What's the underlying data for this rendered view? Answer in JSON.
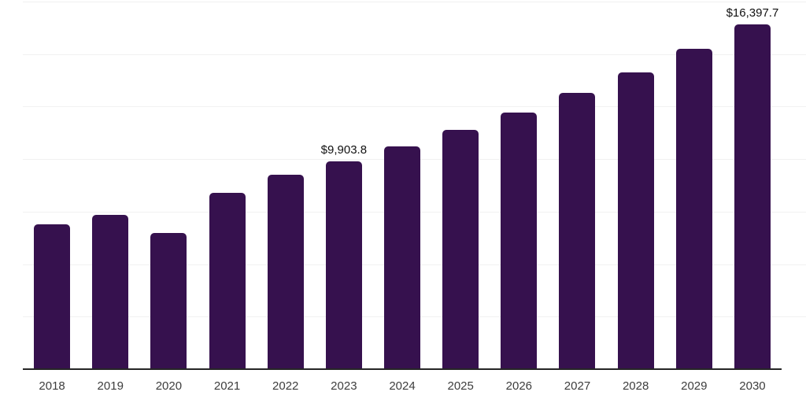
{
  "chart_data": {
    "type": "bar",
    "title": "",
    "xlabel": "",
    "ylabel": "",
    "categories": [
      "2018",
      "2019",
      "2020",
      "2021",
      "2022",
      "2023",
      "2024",
      "2025",
      "2026",
      "2027",
      "2028",
      "2029",
      "2030"
    ],
    "values": [
      6880,
      7330,
      6470,
      8380,
      9240,
      9903.8,
      10620,
      11410,
      12230,
      13160,
      14140,
      15260,
      16397.7
    ],
    "value_labels": {
      "2023": "$9,903.8",
      "2030": "$16,397.7"
    },
    "ylim": [
      0,
      17500
    ],
    "gridline_step": 2500,
    "grid": "horizontal",
    "legend": "none",
    "bar_color": "#36114E",
    "axis_color": "#262626",
    "gridline_color": "#F1F1F1",
    "value_label_color": "#111111",
    "tick_label_color": "#3D3D3D"
  }
}
